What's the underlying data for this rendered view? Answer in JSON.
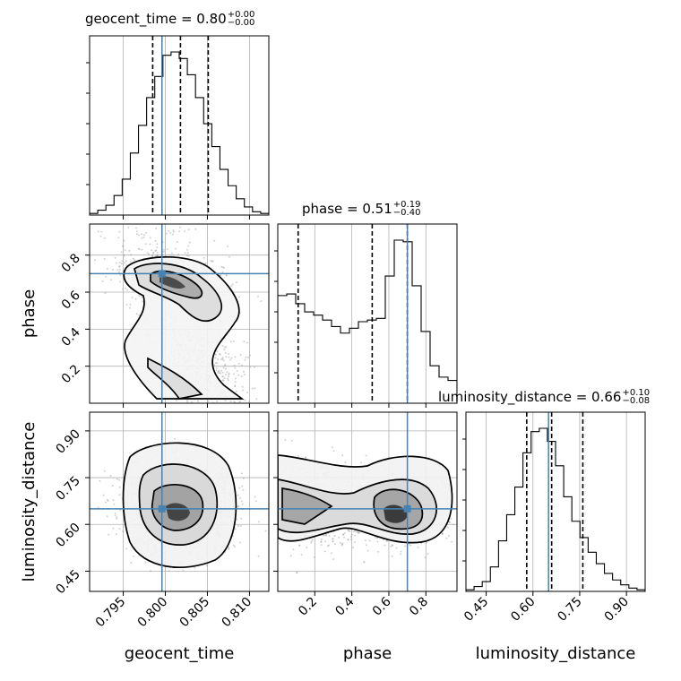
{
  "chart_data": {
    "type": "corner",
    "parameters": [
      "geocent_time",
      "phase",
      "luminosity_distance"
    ],
    "truths": {
      "geocent_time": 0.7996,
      "phase": 0.7,
      "luminosity_distance": 0.65
    },
    "titles": [
      {
        "param": "geocent_time",
        "text": "geocent_time = 0.80",
        "plus": "+0.00",
        "minus": "−0.00"
      },
      {
        "param": "phase",
        "text": "phase = 0.51",
        "plus": "+0.19",
        "minus": "−0.40"
      },
      {
        "param": "luminosity_distance",
        "text": "luminosity_distance = 0.66",
        "plus": "+0.10",
        "minus": "−0.08"
      }
    ],
    "axes": {
      "geocent_time": {
        "range": [
          0.791,
          0.8123
        ],
        "ticks": [
          0.795,
          0.8,
          0.805,
          0.81
        ],
        "tick_labels": [
          "0.795",
          "0.800",
          "0.805",
          "0.810"
        ],
        "label": "geocent_time"
      },
      "phase": {
        "range": [
          0.0,
          0.968
        ],
        "ticks": [
          0.2,
          0.4,
          0.6,
          0.8
        ],
        "tick_labels": [
          "0.2",
          "0.4",
          "0.6",
          "0.8"
        ],
        "label": "phase"
      },
      "luminosity_distance": {
        "range": [
          0.385,
          0.96
        ],
        "ticks": [
          0.45,
          0.6,
          0.75,
          0.9
        ],
        "tick_labels": [
          "0.45",
          "0.60",
          "0.75",
          "0.90"
        ],
        "label": "luminosity_distance"
      }
    },
    "quantiles": {
      "geocent_time": [
        0.7985,
        0.8018,
        0.8051
      ],
      "phase": [
        0.11,
        0.51,
        0.7
      ],
      "luminosity_distance": [
        0.58,
        0.66,
        0.76
      ]
    },
    "histograms": {
      "geocent_time": [
        1,
        3,
        6,
        12,
        22,
        38,
        55,
        72,
        85,
        98,
        100,
        96,
        86,
        72,
        56,
        42,
        28,
        18,
        10,
        5,
        2,
        1
      ],
      "phase": [
        66,
        67,
        61,
        56,
        54,
        51,
        47,
        43,
        46,
        50,
        51,
        52,
        78,
        100,
        99,
        72,
        44,
        23,
        16,
        14
      ],
      "luminosity_distance": [
        1,
        3,
        6,
        15,
        31,
        47,
        64,
        85,
        98,
        100,
        92,
        77,
        58,
        43,
        33,
        24,
        17,
        11,
        7,
        4,
        2,
        1
      ]
    },
    "grid": true
  }
}
